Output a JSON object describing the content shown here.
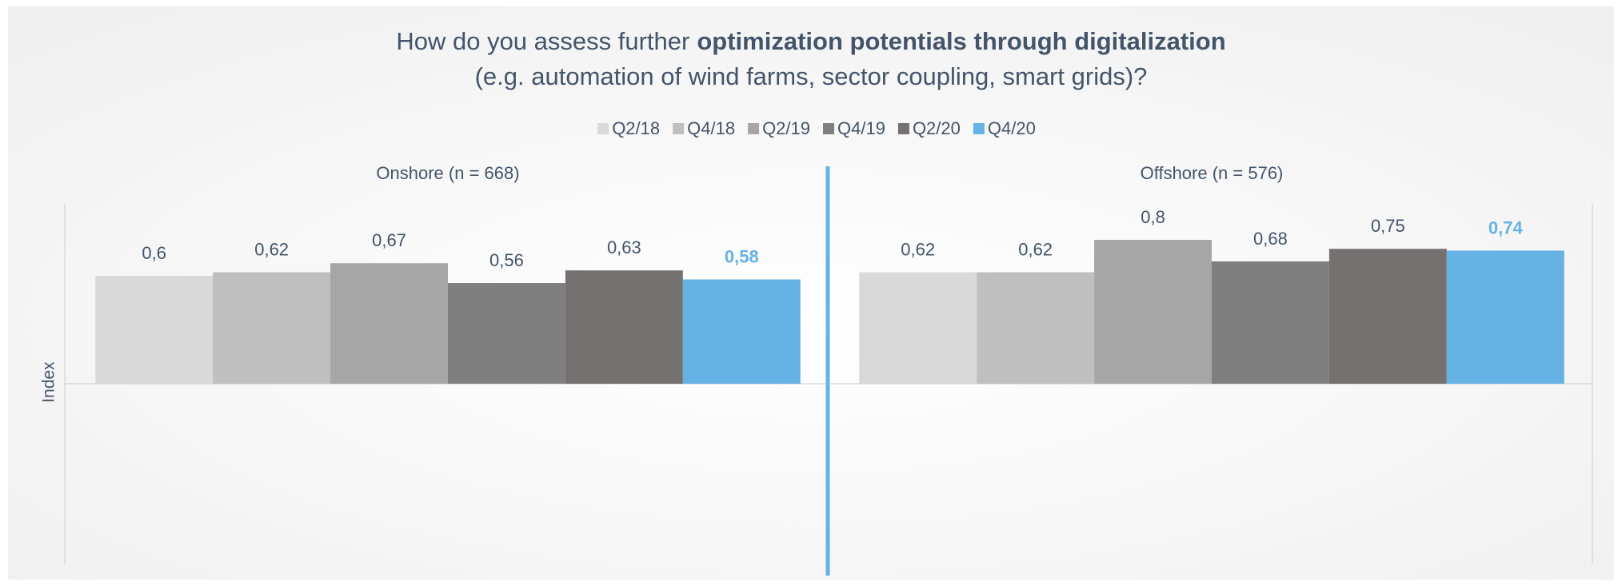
{
  "chart_data": {
    "type": "bar",
    "title": [
      "How do you assess further",
      "optimization potentials through digitalization"
    ],
    "subtitle": "(e.g. automation of wind farms, sector coupling, smart grids)?",
    "y_label": "Index",
    "categories": [
      "Onshore (n = 668)",
      "Offshore (n = 576)"
    ],
    "series": [
      {
        "name": "Q2/18",
        "color": "#d9d9d9",
        "values": [
          0.6,
          0.62
        ],
        "value_labels": [
          "0,6",
          "0,62"
        ]
      },
      {
        "name": "Q4/18",
        "color": "#bfbfbf",
        "values": [
          0.62,
          0.62
        ],
        "value_labels": [
          "0,62",
          "0,62"
        ]
      },
      {
        "name": "Q2/19",
        "color": "#a6a6a6",
        "values": [
          0.67,
          0.8
        ],
        "value_labels": [
          "0,67",
          "0,8"
        ]
      },
      {
        "name": "Q4/19",
        "color": "#7f7f7f",
        "values": [
          0.56,
          0.68
        ],
        "value_labels": [
          "0,56",
          "0,68"
        ]
      },
      {
        "name": "Q2/20",
        "color": "#767171",
        "values": [
          0.63,
          0.75
        ],
        "value_labels": [
          "0,63",
          "0,75"
        ]
      },
      {
        "name": "Q4/20",
        "color": "#65b2e4",
        "values": [
          0.58,
          0.74
        ],
        "value_labels": [
          "0,58",
          "0,74"
        ]
      }
    ],
    "ylim": [
      -1,
      1
    ],
    "legend": "top"
  }
}
